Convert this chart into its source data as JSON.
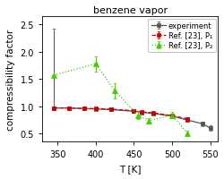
{
  "title": "benzene vapor",
  "xlabel": "T [K]",
  "ylabel": "compressibility factor",
  "xlim": [
    330,
    560
  ],
  "ylim": [
    0.35,
    2.65
  ],
  "xticks": [
    350,
    400,
    450,
    500,
    550
  ],
  "yticks": [
    0.5,
    1.0,
    1.5,
    2.0,
    2.5
  ],
  "ref23_P1": {
    "x": [
      345,
      365,
      385,
      400,
      420,
      450,
      460,
      475,
      500,
      520
    ],
    "y": [
      0.97,
      0.97,
      0.96,
      0.96,
      0.95,
      0.92,
      0.9,
      0.88,
      0.83,
      0.77
    ],
    "yerr_lo": [
      0.02,
      0.01,
      0.01,
      0.01,
      0.01,
      0.01,
      0.01,
      0.01,
      0.02,
      0.03
    ],
    "yerr_hi": [
      0.02,
      0.01,
      0.01,
      0.01,
      0.01,
      0.01,
      0.01,
      0.01,
      0.02,
      0.03
    ],
    "color": "#cc0000",
    "linestyle": "--",
    "marker": "s",
    "markersize": 3.5,
    "markerfacecolor": "#cc0000",
    "label": "Ref. [23], P₁"
  },
  "ref23_P2": {
    "x": [
      345,
      400,
      425,
      455,
      470,
      500,
      520
    ],
    "y": [
      1.57,
      1.78,
      1.29,
      0.84,
      0.74,
      0.84,
      0.51
    ],
    "yerr_lo": [
      0.0,
      0.14,
      0.14,
      0.08,
      0.05,
      0.06,
      0.05
    ],
    "yerr_hi": [
      0.0,
      0.14,
      0.14,
      0.08,
      0.05,
      0.06,
      0.05
    ],
    "color": "#44cc00",
    "linestyle": ":",
    "marker": "^",
    "markersize": 4,
    "markerfacecolor": "#44cc00",
    "label": "Ref. [23], P₂"
  },
  "experiment": {
    "x": [
      345,
      365,
      385,
      400,
      420,
      450,
      460,
      475,
      500,
      520,
      540,
      550
    ],
    "y": [
      0.97,
      0.97,
      0.96,
      0.95,
      0.94,
      0.91,
      0.89,
      0.87,
      0.82,
      0.75,
      0.68,
      0.6
    ],
    "yerr_lo": [
      0.02,
      0.01,
      0.01,
      0.01,
      0.01,
      0.01,
      0.01,
      0.01,
      0.02,
      0.03,
      0.04,
      0.05
    ],
    "yerr_hi": [
      1.45,
      0.01,
      0.01,
      0.01,
      0.01,
      0.01,
      0.01,
      0.01,
      0.02,
      0.03,
      0.04,
      0.05
    ],
    "color": "#555555",
    "linestyle": "-",
    "marker": "s",
    "markersize": 3.5,
    "markerfacecolor": "#555555",
    "label": "experiment"
  },
  "legend_loc": "upper right",
  "title_fontsize": 8,
  "axis_fontsize": 7.5,
  "tick_fontsize": 7,
  "legend_fontsize": 6
}
